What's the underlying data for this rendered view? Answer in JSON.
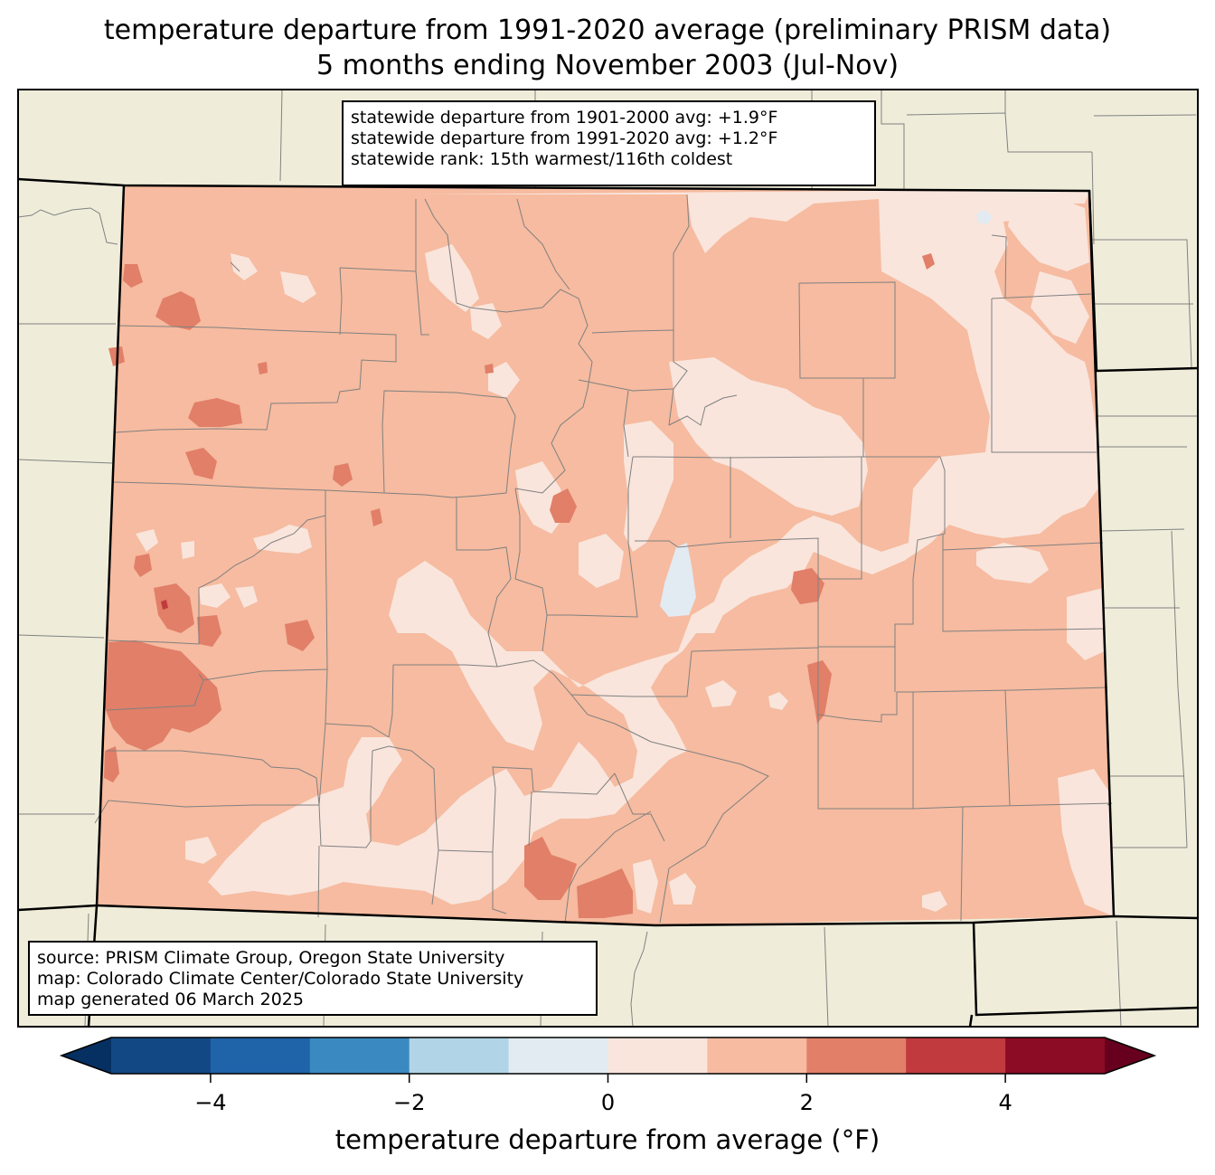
{
  "title": {
    "line1": "temperature departure from 1991-2020 average (preliminary PRISM data)",
    "line2": "5 months ending November 2003 (Jul-Nov)"
  },
  "stats_box": {
    "line1": "statewide departure from 1901-2000 avg: +1.9°F",
    "line2": "statewide departure from 1991-2020 avg: +1.2°F",
    "line3": "statewide rank: 15th warmest/116th coldest"
  },
  "source_box": {
    "line1": "source: PRISM Climate Group, Oregon State University",
    "line2": "map: Colorado Climate Center/Colorado State University",
    "line3": "map generated 06 March 2025"
  },
  "colorbar": {
    "label": "temperature departure from average (°F)",
    "ticks": [
      {
        "label": "−4",
        "value": -4
      },
      {
        "label": "−2",
        "value": -2
      },
      {
        "label": "0",
        "value": 0
      },
      {
        "label": "2",
        "value": 2
      },
      {
        "label": "4",
        "value": 4
      }
    ],
    "bins": [
      {
        "from": -5,
        "to": -4,
        "color": "#124984"
      },
      {
        "from": -4,
        "to": -3,
        "color": "#1f63a8"
      },
      {
        "from": -3,
        "to": -2,
        "color": "#3a8ac1"
      },
      {
        "from": -2,
        "to": -1,
        "color": "#b1d5e7"
      },
      {
        "from": -1,
        "to": 0,
        "color": "#e2eaf2"
      },
      {
        "from": 0,
        "to": 1,
        "color": "#f9e5dc"
      },
      {
        "from": 1,
        "to": 2,
        "color": "#f6bba0"
      },
      {
        "from": 2,
        "to": 3,
        "color": "#e17f68"
      },
      {
        "from": 3,
        "to": 4,
        "color": "#c13a3e"
      },
      {
        "from": 4,
        "to": 5,
        "color": "#8d0c25"
      }
    ],
    "under_color": "#053061",
    "over_color": "#67001f"
  },
  "map_colors": {
    "land_background": "#efedda",
    "county_lines": "#808080",
    "state_lines": "#000000"
  }
}
